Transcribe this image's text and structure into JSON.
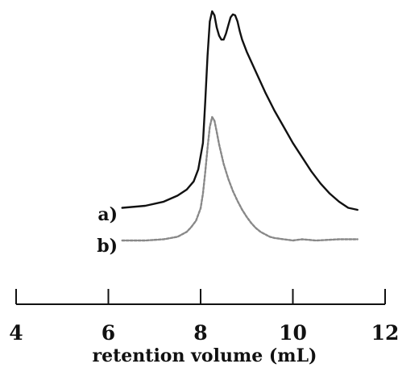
{
  "chart_data": {
    "type": "line",
    "xlabel": "retention volume (mL)",
    "ylabel": "",
    "xlim": [
      4,
      12
    ],
    "xticks": [
      4,
      6,
      8,
      10,
      12
    ],
    "xtick_labels": [
      "4",
      "6",
      "8",
      "10",
      "12"
    ],
    "grid": false,
    "series": [
      {
        "name": "a)",
        "color": "#111111",
        "style": "solid",
        "x": [
          6.3,
          6.8,
          7.2,
          7.5,
          7.7,
          7.85,
          7.95,
          8.05,
          8.1,
          8.15,
          8.2,
          8.25,
          8.3,
          8.35,
          8.4,
          8.45,
          8.5,
          8.55,
          8.6,
          8.65,
          8.7,
          8.75,
          8.8,
          8.85,
          8.9,
          9.0,
          9.2,
          9.4,
          9.6,
          9.8,
          10.0,
          10.2,
          10.4,
          10.6,
          10.8,
          11.0,
          11.2,
          11.4
        ],
        "y": [
          0.03,
          0.04,
          0.06,
          0.09,
          0.12,
          0.16,
          0.22,
          0.35,
          0.55,
          0.78,
          0.95,
          1.0,
          0.98,
          0.92,
          0.88,
          0.86,
          0.86,
          0.89,
          0.93,
          0.97,
          0.985,
          0.98,
          0.95,
          0.9,
          0.86,
          0.8,
          0.7,
          0.6,
          0.51,
          0.43,
          0.35,
          0.28,
          0.21,
          0.15,
          0.1,
          0.06,
          0.03,
          0.02
        ]
      },
      {
        "name": "b)",
        "color": "#888888",
        "style": "dashed",
        "x": [
          6.3,
          6.8,
          7.2,
          7.5,
          7.7,
          7.8,
          7.9,
          8.0,
          8.05,
          8.1,
          8.15,
          8.2,
          8.25,
          8.3,
          8.35,
          8.4,
          8.5,
          8.6,
          8.7,
          8.8,
          8.9,
          9.0,
          9.1,
          9.2,
          9.3,
          9.4,
          9.5,
          9.6,
          9.8,
          10.0,
          10.2,
          10.5,
          11.0,
          11.4
        ],
        "y": [
          0.0,
          0.0,
          0.01,
          0.03,
          0.07,
          0.11,
          0.16,
          0.26,
          0.38,
          0.55,
          0.75,
          0.92,
          1.0,
          0.97,
          0.88,
          0.78,
          0.62,
          0.5,
          0.4,
          0.32,
          0.25,
          0.19,
          0.14,
          0.1,
          0.07,
          0.05,
          0.03,
          0.02,
          0.01,
          0.0,
          0.01,
          0.0,
          0.01,
          0.01
        ]
      }
    ]
  }
}
